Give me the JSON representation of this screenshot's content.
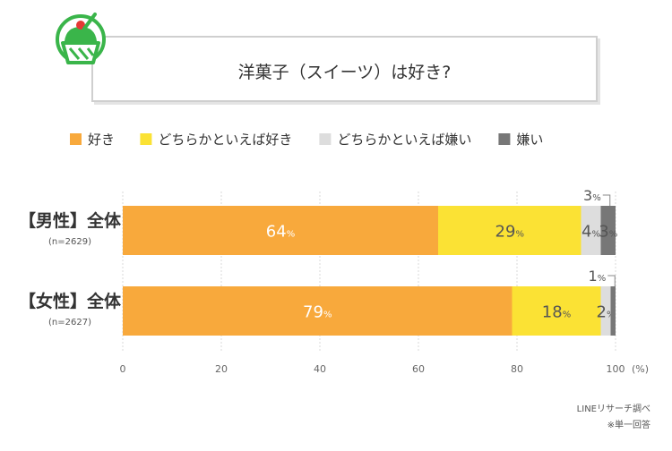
{
  "title": "洋菓子（スイーツ）は好き?",
  "chart_data": {
    "type": "bar",
    "orientation": "horizontal",
    "stacked": true,
    "categories": [
      "【男性】全体",
      "【女性】全体"
    ],
    "category_sub": [
      "(n=2629)",
      "(n=2627)"
    ],
    "series": [
      {
        "name": "好き",
        "values": [
          64,
          79
        ],
        "color": "#f8a93c"
      },
      {
        "name": "どちらかといえば好き",
        "values": [
          29,
          18
        ],
        "color": "#fbe234"
      },
      {
        "name": "どちらかといえば嫌い",
        "values": [
          4,
          2
        ],
        "color": "#dddddd"
      },
      {
        "name": "嫌い",
        "values": [
          3,
          1
        ],
        "color": "#777777"
      }
    ],
    "xlim": [
      0,
      100
    ],
    "xticks": [
      "0",
      "20",
      "40",
      "60",
      "80",
      "100"
    ],
    "x_unit": "(%)",
    "value_unit": "%",
    "legend_position": "top"
  },
  "source": [
    "LINEリサーチ調べ",
    "※単一回答"
  ]
}
